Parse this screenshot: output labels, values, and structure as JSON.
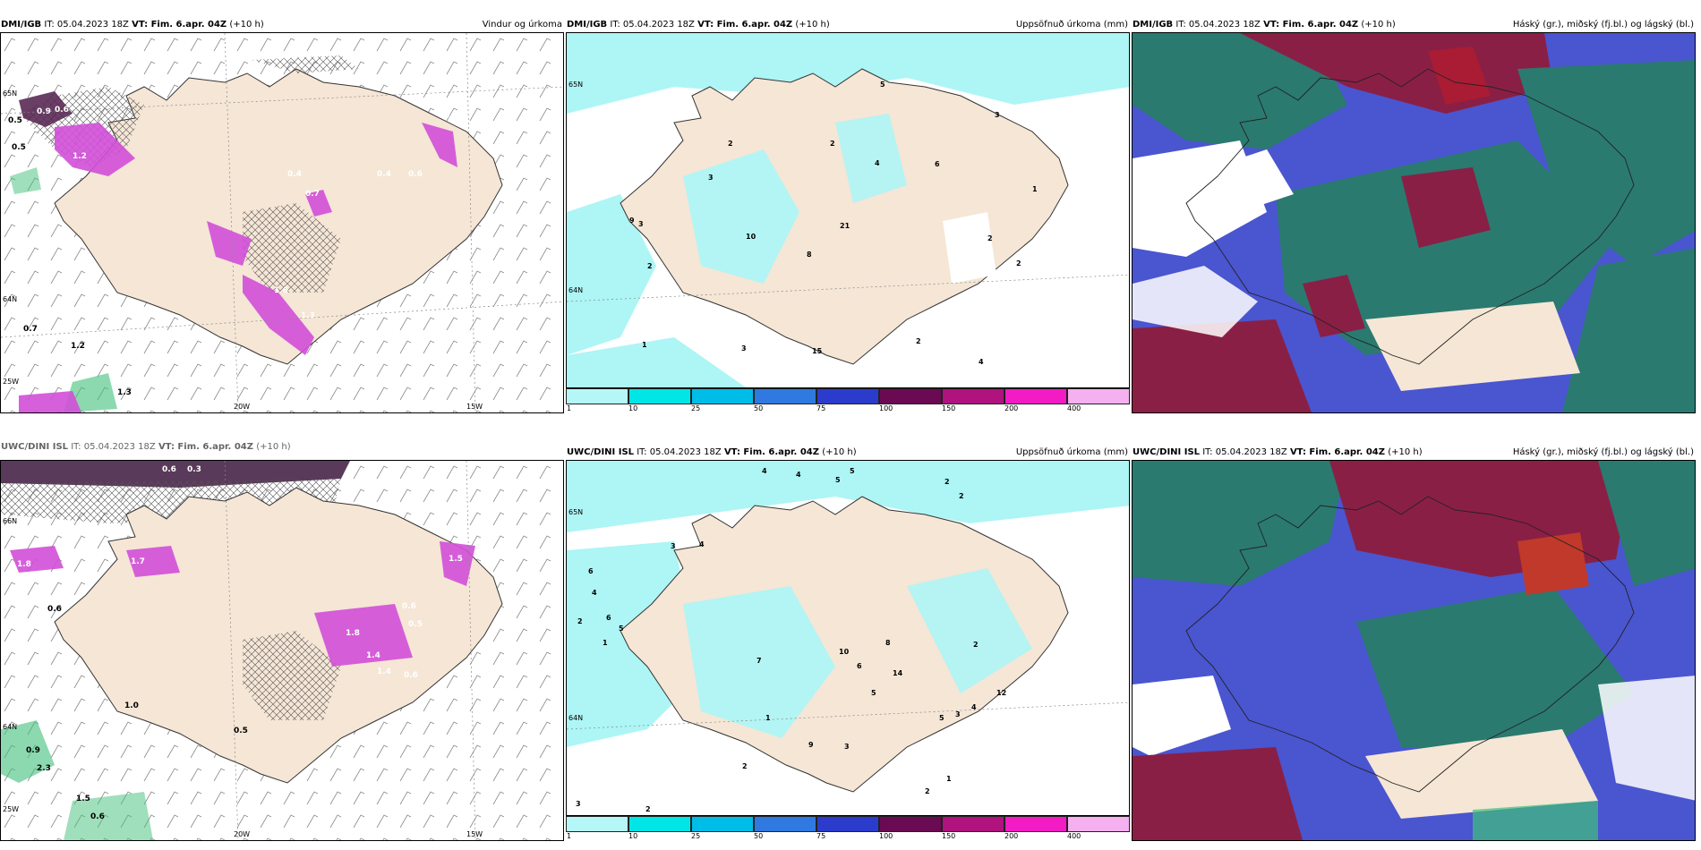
{
  "colors": {
    "land": "#f5e6d6",
    "sea": "#ffffff",
    "precip_light": "#aef5f5",
    "magenta": "#d24fd8",
    "dark_purple": "#5a2a55",
    "green": "#3fc07a",
    "blue": "#4a55d0",
    "maroon": "#8a1f45",
    "teal": "#2a7a70"
  },
  "panels": [
    {
      "id": "top-left",
      "title_prefix": "DMI/IGB",
      "issue": "IT: 05.04.2023 18Z",
      "vt_label": "VT: Fim. 6.apr. 04Z",
      "lead": "(+10 h)",
      "product": "Vindur og úrkoma",
      "lon_labels": [
        "20W",
        "15W"
      ],
      "lat_labels": [
        "65N",
        "64N",
        "25W"
      ],
      "values": [
        "0.5",
        "0.5",
        "0.9",
        "0.6",
        "1.2",
        "0.4",
        "0.7",
        "0.4",
        "0.8",
        "0.6",
        "1.6",
        "1.3",
        "0.7",
        "1.2",
        "1.3"
      ]
    },
    {
      "id": "top-mid",
      "title_prefix": "DMI/IGB",
      "issue": "IT: 05.04.2023 18Z",
      "vt_label": "VT: Fim. 6.apr. 04Z",
      "lead": "(+10 h)",
      "product": "Uppsöfnuð úrkoma (mm)",
      "lat_labels": [
        "65N",
        "64N"
      ],
      "values": [
        "5",
        "3",
        "2",
        "2",
        "3",
        "4",
        "6",
        "1",
        "3",
        "9",
        "10",
        "8",
        "21",
        "2",
        "2",
        "2",
        "1",
        "3",
        "15",
        "2",
        "4"
      ],
      "colorbar": {
        "ticks": [
          "1",
          "10",
          "25",
          "50",
          "75",
          "100",
          "150",
          "200",
          "400"
        ],
        "colors": [
          "#b5f7f7",
          "#00e6e6",
          "#00bde8",
          "#2f79e0",
          "#2b3ccc",
          "#6a0a52",
          "#b0127e",
          "#f21bc4",
          "#f5b0f0"
        ]
      }
    },
    {
      "id": "top-right",
      "title_prefix": "DMI/IGB",
      "issue": "IT: 05.04.2023 18Z",
      "vt_label": "VT: Fim. 6.apr. 04Z",
      "lead": "(+10 h)",
      "product": "Háský (gr.), miðský (fj.bl.) og lágský (bl.)"
    },
    {
      "id": "bottom-left",
      "title_prefix": "UWC/DINI ISL",
      "issue": "IT: 05.04.2023 18Z",
      "vt_label": "VT: Fim. 6.apr. 04Z",
      "lead": "(+10 h)",
      "product": "",
      "lon_labels": [
        "20W",
        "15W"
      ],
      "lat_labels": [
        "66N",
        "64N",
        "25W"
      ],
      "values": [
        "0.6",
        "0.3",
        "1.8",
        "0.6",
        "1.7",
        "1.5",
        "0.8",
        "1.8",
        "1.4",
        "0.6",
        "0.5",
        "1.0",
        "0.9",
        "2.3",
        "1.5",
        "0.6",
        "0.5",
        "1.4",
        "0.6"
      ]
    },
    {
      "id": "bottom-mid",
      "title_prefix": "UWC/DINI ISL",
      "issue": "IT: 05.04.2023 18Z",
      "vt_label": "VT: Fim. 6.apr. 04Z",
      "lead": "(+10 h)",
      "product": "Uppsöfnuð úrkoma (mm)",
      "lat_labels": [
        "65N",
        "64N"
      ],
      "values": [
        "4",
        "4",
        "5",
        "5",
        "2",
        "2",
        "6",
        "4",
        "2",
        "3",
        "4",
        "6",
        "5",
        "1",
        "7",
        "10",
        "8",
        "6",
        "5",
        "2",
        "14",
        "3",
        "5",
        "4",
        "12",
        "1",
        "9",
        "3",
        "2",
        "1",
        "2",
        "3",
        "2"
      ],
      "colorbar": {
        "ticks": [
          "1",
          "10",
          "25",
          "50",
          "75",
          "100",
          "150",
          "200",
          "400"
        ],
        "colors": [
          "#b5f7f7",
          "#00e6e6",
          "#00bde8",
          "#2f79e0",
          "#2b3ccc",
          "#6a0a52",
          "#b0127e",
          "#f21bc4",
          "#f5b0f0"
        ]
      }
    },
    {
      "id": "bottom-right",
      "title_prefix": "UWC/DINI ISL",
      "issue": "IT: 05.04.2023 18Z",
      "vt_label": "VT: Fim. 6.apr. 04Z",
      "lead": "(+10 h)",
      "product": "Háský (gr.), miðský (fj.bl.) og lágský (bl.)"
    }
  ]
}
